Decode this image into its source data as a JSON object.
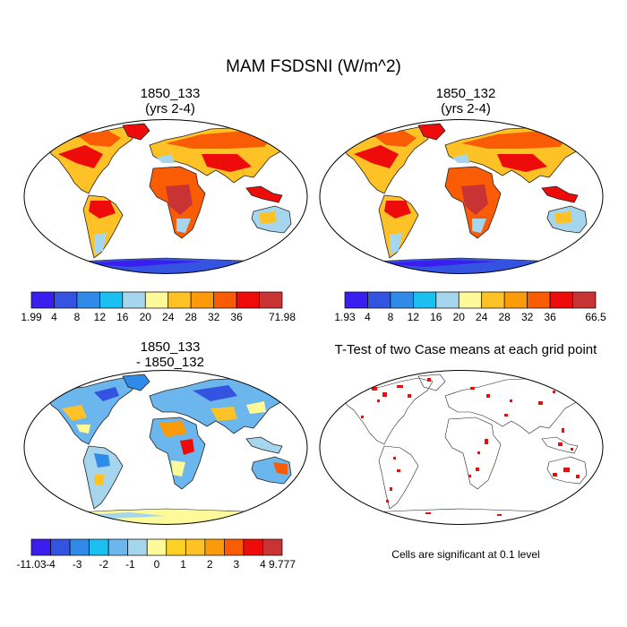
{
  "figure": {
    "title": "MAM FSDSNI (W/m^2)",
    "note": "Cells are significant at 0.1 level"
  },
  "panels": [
    {
      "id": "p1",
      "title_line1": "1850_133",
      "title_line2": "(yrs 2-4)",
      "kind": "field"
    },
    {
      "id": "p2",
      "title_line1": "1850_132",
      "title_line2": "(yrs 2-4)",
      "kind": "field"
    },
    {
      "id": "p3",
      "title_line1": "1850_133",
      "title_line2": "- 1850_132",
      "kind": "difference"
    },
    {
      "id": "p4",
      "title_line1": "T-Test of two Case means at each grid point",
      "title_line2": "",
      "kind": "significance"
    }
  ],
  "colorbars": [
    {
      "id": "cb1",
      "colors": [
        "#3a1ef0",
        "#3453e0",
        "#2f8ae8",
        "#1cc0f0",
        "#a6d6ee",
        "#fefa9a",
        "#fec227",
        "#fb9a0a",
        "#fa5c06",
        "#ee0c0b",
        "#c83434"
      ],
      "labels": [
        "1.99",
        "4",
        "8",
        "12",
        "16",
        "20",
        "24",
        "28",
        "32",
        "36",
        "71.98"
      ]
    },
    {
      "id": "cb2",
      "colors": [
        "#3a1ef0",
        "#3453e0",
        "#2f8ae8",
        "#1cc0f0",
        "#a6d6ee",
        "#fefa9a",
        "#fec227",
        "#fb9a0a",
        "#fa5c06",
        "#ee0c0b",
        "#c83434"
      ],
      "labels": [
        "1.93",
        "4",
        "8",
        "12",
        "16",
        "20",
        "24",
        "28",
        "32",
        "36",
        "66.5"
      ]
    },
    {
      "id": "cb3",
      "colors": [
        "#3a1ef0",
        "#3453e0",
        "#2f8ae8",
        "#1cc0f0",
        "#6bb6ec",
        "#a6d6ee",
        "#fefa9a",
        "#fed127",
        "#fec227",
        "#fb9a0a",
        "#fa5c06",
        "#ee0c0b",
        "#c83434"
      ],
      "labels": [
        "-11.03",
        "-4",
        "-3",
        "-2",
        "-1",
        "0",
        "1",
        "2",
        "3",
        "4",
        "9.777"
      ]
    }
  ]
}
